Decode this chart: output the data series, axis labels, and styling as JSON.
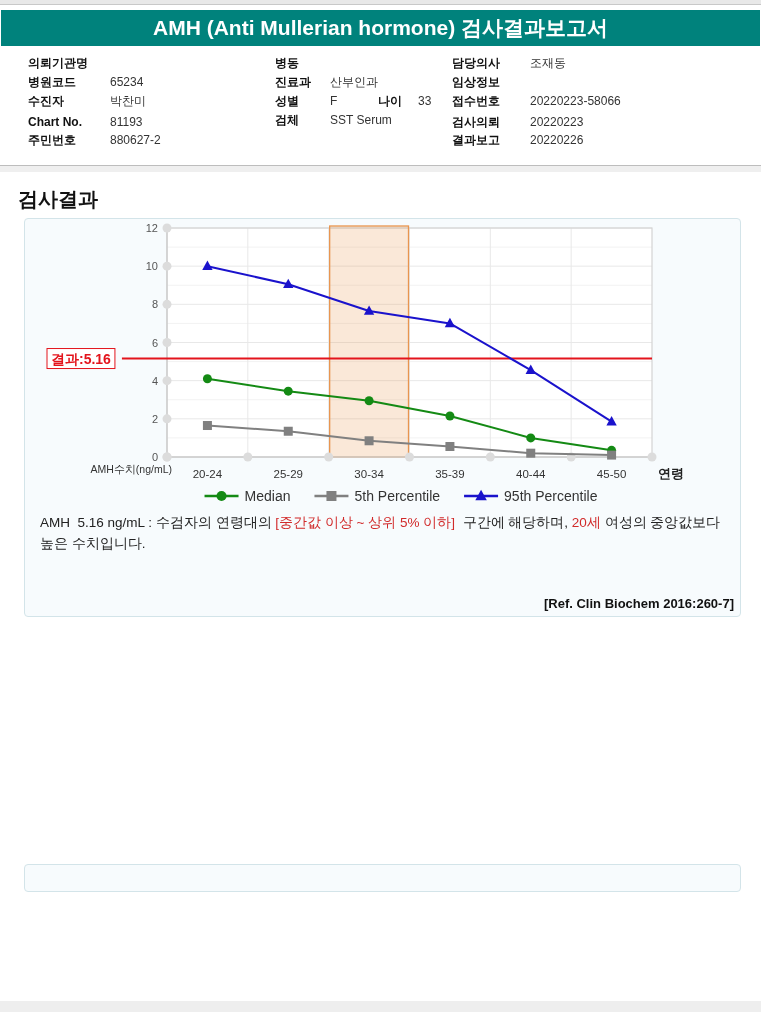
{
  "chart_data": {
    "type": "line",
    "title": "AMH (Anti Mullerian hormone) 검사결과보고서",
    "subtitle": "검사결과",
    "xlabel": "연령",
    "ylabel": "AMH수치(ng/mL)",
    "categories": [
      "20-24",
      "25-29",
      "30-34",
      "35-39",
      "40-44",
      "45-50"
    ],
    "series": [
      {
        "name": "Median",
        "color": "#148a14",
        "marker": "circle",
        "values": [
          4.1,
          3.45,
          2.95,
          2.15,
          1.0,
          0.35
        ]
      },
      {
        "name": "5th Percentile",
        "color": "#808080",
        "marker": "square",
        "values": [
          1.65,
          1.35,
          0.85,
          0.55,
          0.2,
          0.1
        ]
      },
      {
        "name": "95th Percentile",
        "color": "#1a12cc",
        "marker": "triangle",
        "values": [
          10.0,
          9.05,
          7.65,
          7.0,
          4.55,
          1.85
        ]
      }
    ],
    "ylim": [
      0,
      12
    ],
    "yticks": [
      0,
      2,
      4,
      6,
      8,
      10,
      12
    ],
    "grid": true,
    "legend": "bottom",
    "line_style": "solid",
    "ref_lines": [
      {
        "axis": "y",
        "value": 5.16,
        "label": "결과:5.16",
        "color": "#e3141c"
      }
    ],
    "bands": [
      {
        "axis": "x",
        "from": "30-34",
        "to": "30-34",
        "color": "#e8954f"
      }
    ],
    "annotations": [
      "의뢰기관명",
      "병원코드",
      "65234",
      "수진자",
      "박찬미",
      "Chart No.",
      "81193",
      "주민번호",
      "880627-2",
      "병동",
      "진료과",
      "산부인과",
      "성별",
      "F",
      "나이",
      "33",
      "검체",
      "SST Serum",
      "담당의사",
      "조재동",
      "임상정보",
      "접수번호",
      "20220223-58066",
      "검사의뢰",
      "20220223",
      "결과보고",
      "20220226",
      "AMH  5.16 ng/mL : 수검자의 연령대의",
      "[중간값 이상 ~ 상위 5% 이하]",
      " 구간에 해당하며,",
      "20세",
      "여성의 중앙값보다",
      "높은 수치입니다.",
      "[Ref. Clin Biochem 2016:260-7]"
    ]
  }
}
